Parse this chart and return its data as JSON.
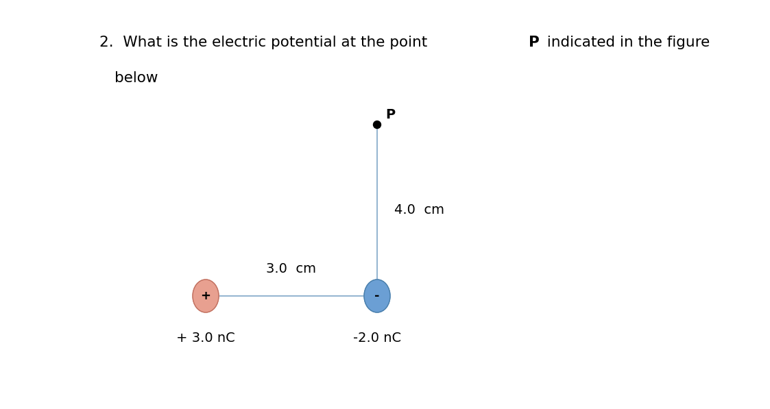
{
  "background_color": "#ffffff",
  "title_fontsize": 15.5,
  "label_fontsize": 14,
  "charge_pos_color": "#e8a090",
  "charge_pos_label": "+ 3.0 nC",
  "charge_pos_sign": "+",
  "charge_neg_color": "#6b9fd4",
  "charge_neg_label": "-2.0 nC",
  "charge_neg_sign": "-",
  "point_P_label": "P",
  "line_color": "#8aaecc",
  "horizontal_label": "3.0  cm",
  "vertical_label": "4.0  cm"
}
